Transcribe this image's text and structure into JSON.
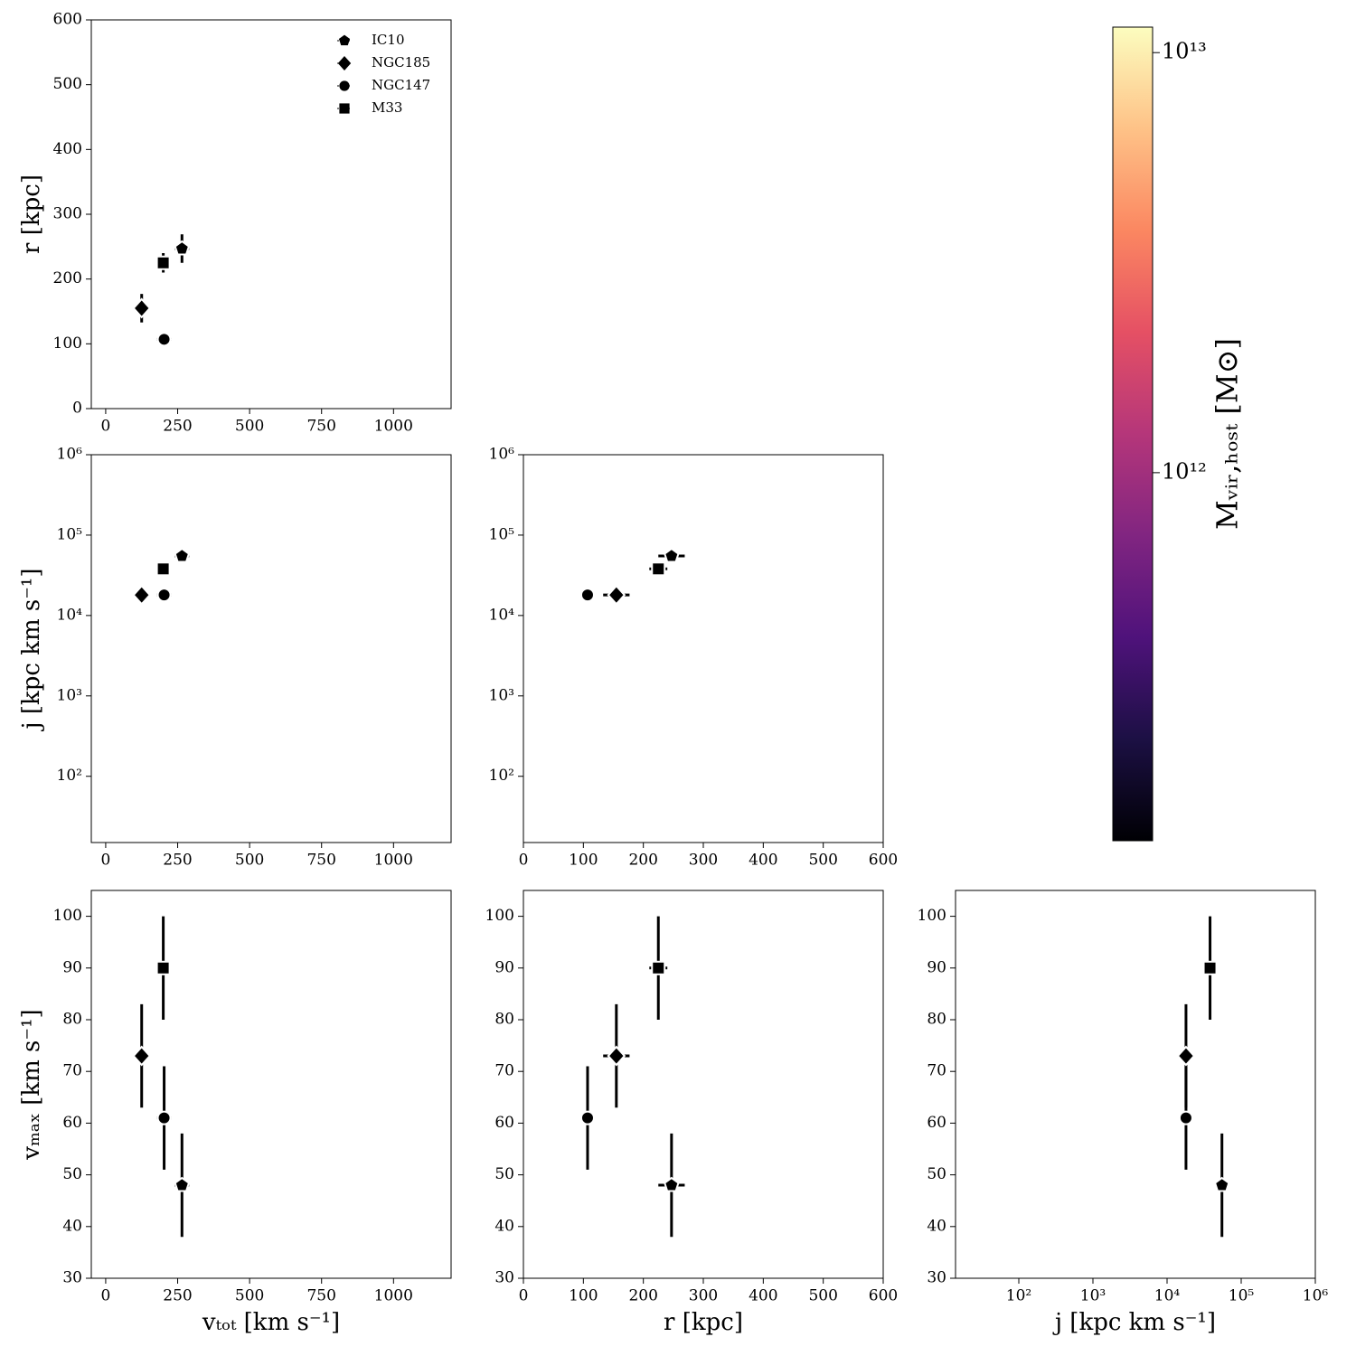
{
  "chart_data": [
    {
      "type": "scatter",
      "ylabel": "r [kpc]",
      "xlim": [
        -50,
        1200
      ],
      "ylim": [
        0,
        600
      ],
      "xscale": "linear",
      "yscale": "linear",
      "xticks": [
        0,
        250,
        500,
        750,
        1000
      ],
      "yticks": [
        0,
        100,
        200,
        300,
        400,
        500,
        600
      ],
      "legend": "upper right",
      "series": [
        {
          "name": "IC10",
          "marker": "pentagon",
          "x": [
            265
          ],
          "y": [
            247
          ],
          "xerr": [
            25
          ],
          "yerr": [
            22
          ]
        },
        {
          "name": "NGC185",
          "marker": "diamond",
          "x": [
            125
          ],
          "y": [
            155
          ],
          "xerr": [
            20
          ],
          "yerr": [
            22
          ]
        },
        {
          "name": "NGC147",
          "marker": "circle",
          "x": [
            203
          ],
          "y": [
            107
          ],
          "xerr": [
            25
          ],
          "yerr": [
            10
          ]
        },
        {
          "name": "M33",
          "marker": "square",
          "x": [
            200
          ],
          "y": [
            225
          ],
          "xerr": [
            20
          ],
          "yerr": [
            15
          ]
        }
      ]
    },
    {
      "type": "scatter",
      "ylabel": "j [kpc km s⁻¹]",
      "xlim": [
        -50,
        1200
      ],
      "ylim": [
        15,
        1000000
      ],
      "xscale": "linear",
      "yscale": "log",
      "xticks": [
        0,
        250,
        500,
        750,
        1000
      ],
      "yticks": [
        {
          "value": 100,
          "label": "10²"
        },
        {
          "value": 1000,
          "label": "10³"
        },
        {
          "value": 10000,
          "label": "10⁴"
        },
        {
          "value": 100000,
          "label": "10⁵"
        },
        {
          "value": 1000000,
          "label": "10⁶"
        }
      ],
      "series": [
        {
          "name": "IC10",
          "marker": "pentagon",
          "x": [
            265
          ],
          "y": [
            55000
          ],
          "xerr": [
            25
          ]
        },
        {
          "name": "NGC185",
          "marker": "diamond",
          "x": [
            125
          ],
          "y": [
            18000
          ],
          "xerr": [
            20
          ]
        },
        {
          "name": "NGC147",
          "marker": "circle",
          "x": [
            203
          ],
          "y": [
            18000
          ],
          "xerr": [
            25
          ]
        },
        {
          "name": "M33",
          "marker": "square",
          "x": [
            200
          ],
          "y": [
            38000
          ],
          "xerr": [
            20
          ]
        }
      ]
    },
    {
      "type": "scatter",
      "xlim": [
        0,
        600
      ],
      "ylim": [
        15,
        1000000
      ],
      "xscale": "linear",
      "yscale": "log",
      "xticks": [
        0,
        100,
        200,
        300,
        400,
        500,
        600
      ],
      "yticks": [
        {
          "value": 100,
          "label": "10²"
        },
        {
          "value": 1000,
          "label": "10³"
        },
        {
          "value": 10000,
          "label": "10⁴"
        },
        {
          "value": 100000,
          "label": "10⁵"
        },
        {
          "value": 1000000,
          "label": "10⁶"
        }
      ],
      "series": [
        {
          "name": "IC10",
          "marker": "pentagon",
          "x": [
            247
          ],
          "y": [
            55000
          ],
          "xerr": [
            22
          ]
        },
        {
          "name": "NGC185",
          "marker": "diamond",
          "x": [
            155
          ],
          "y": [
            18000
          ],
          "xerr": [
            22
          ]
        },
        {
          "name": "NGC147",
          "marker": "circle",
          "x": [
            107
          ],
          "y": [
            18000
          ],
          "xerr": [
            10
          ]
        },
        {
          "name": "M33",
          "marker": "square",
          "x": [
            225
          ],
          "y": [
            38000
          ],
          "xerr": [
            15
          ]
        }
      ]
    },
    {
      "type": "scatter",
      "ylabel": "vₘₐₓ [km s⁻¹]",
      "xlabel": "vₜₒₜ [km s⁻¹]",
      "xlim": [
        -50,
        1200
      ],
      "ylim": [
        30,
        105
      ],
      "xscale": "linear",
      "yscale": "linear",
      "xticks": [
        0,
        250,
        500,
        750,
        1000
      ],
      "yticks": [
        30,
        40,
        50,
        60,
        70,
        80,
        90,
        100
      ],
      "series": [
        {
          "name": "IC10",
          "marker": "pentagon",
          "x": [
            265
          ],
          "y": [
            48
          ],
          "xerr": [
            25
          ],
          "yerr": [
            10
          ]
        },
        {
          "name": "NGC185",
          "marker": "diamond",
          "x": [
            125
          ],
          "y": [
            73
          ],
          "xerr": [
            20
          ],
          "yerr": [
            10
          ]
        },
        {
          "name": "NGC147",
          "marker": "circle",
          "x": [
            203
          ],
          "y": [
            61
          ],
          "xerr": [
            25
          ],
          "yerr": [
            10
          ]
        },
        {
          "name": "M33",
          "marker": "square",
          "x": [
            200
          ],
          "y": [
            90
          ],
          "xerr": [
            20
          ],
          "yerr": [
            10
          ]
        }
      ]
    },
    {
      "type": "scatter",
      "xlabel": "r [kpc]",
      "xlim": [
        0,
        600
      ],
      "ylim": [
        30,
        105
      ],
      "xscale": "linear",
      "yscale": "linear",
      "xticks": [
        0,
        100,
        200,
        300,
        400,
        500,
        600
      ],
      "yticks": [
        30,
        40,
        50,
        60,
        70,
        80,
        90,
        100
      ],
      "series": [
        {
          "name": "IC10",
          "marker": "pentagon",
          "x": [
            247
          ],
          "y": [
            48
          ],
          "xerr": [
            22
          ],
          "yerr": [
            10
          ]
        },
        {
          "name": "NGC185",
          "marker": "diamond",
          "x": [
            155
          ],
          "y": [
            73
          ],
          "xerr": [
            22
          ],
          "yerr": [
            10
          ]
        },
        {
          "name": "NGC147",
          "marker": "circle",
          "x": [
            107
          ],
          "y": [
            61
          ],
          "xerr": [
            10
          ],
          "yerr": [
            10
          ]
        },
        {
          "name": "M33",
          "marker": "square",
          "x": [
            225
          ],
          "y": [
            90
          ],
          "xerr": [
            15
          ],
          "yerr": [
            10
          ]
        }
      ]
    },
    {
      "type": "scatter",
      "xlabel": "j [kpc km s⁻¹]",
      "xlim": [
        14,
        1000000
      ],
      "ylim": [
        30,
        105
      ],
      "xscale": "log",
      "yscale": "linear",
      "xticks": [
        {
          "value": 100,
          "label": "10²"
        },
        {
          "value": 1000,
          "label": "10³"
        },
        {
          "value": 10000,
          "label": "10⁴"
        },
        {
          "value": 100000,
          "label": "10⁵"
        },
        {
          "value": 1000000,
          "label": "10⁶"
        }
      ],
      "yticks": [
        30,
        40,
        50,
        60,
        70,
        80,
        90,
        100
      ],
      "series": [
        {
          "name": "IC10",
          "marker": "pentagon",
          "x": [
            55000
          ],
          "y": [
            48
          ],
          "yerr": [
            10
          ]
        },
        {
          "name": "NGC185",
          "marker": "diamond",
          "x": [
            18000
          ],
          "y": [
            73
          ],
          "yerr": [
            10
          ]
        },
        {
          "name": "NGC147",
          "marker": "circle",
          "x": [
            18000
          ],
          "y": [
            61
          ],
          "yerr": [
            10
          ]
        },
        {
          "name": "M33",
          "marker": "square",
          "x": [
            38000
          ],
          "y": [
            90
          ],
          "yerr": [
            10
          ]
        }
      ]
    }
  ],
  "colorbar": {
    "label": "Mᵥᵢᵣ,ₕₒₛₜ [M⊙]",
    "scale": "log",
    "lim": [
      133000000000,
      11500000000000
    ],
    "ticks": [
      {
        "value": 1000000000000,
        "label": "10¹²"
      },
      {
        "value": 10000000000000,
        "label": "10¹³"
      }
    ],
    "colors": [
      "#000004",
      "#1c1044",
      "#4f127b",
      "#812581",
      "#b5367a",
      "#e55064",
      "#fb8761",
      "#fec287",
      "#fcfdbf"
    ]
  }
}
